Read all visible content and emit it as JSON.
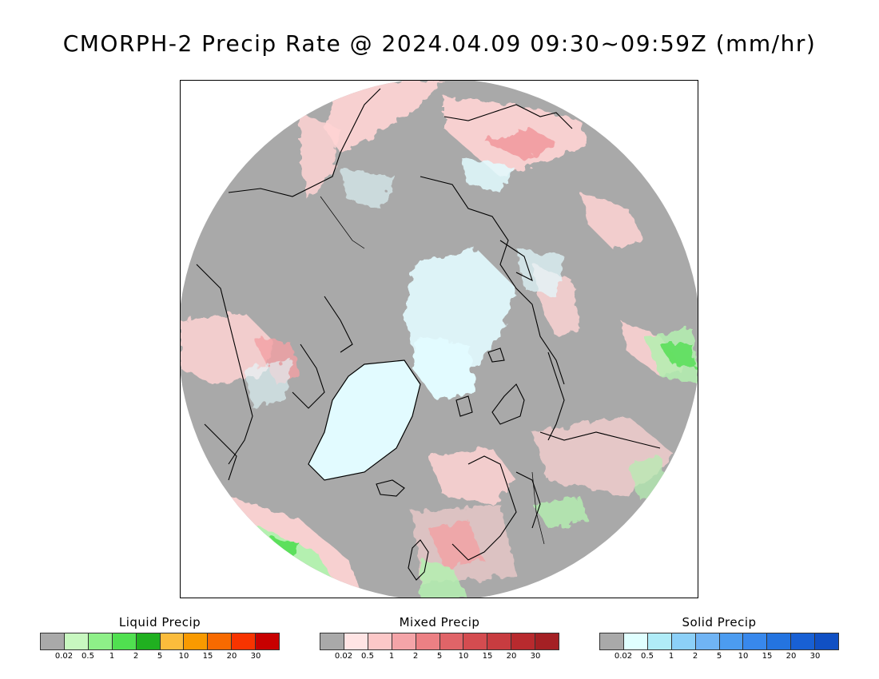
{
  "title": "CMORPH-2 Precip Rate @ 2024.04.09 09:30~09:59Z (mm/hr)",
  "map": {
    "projection_icon": "polar-stereographic-arctic-map",
    "colors": {
      "no_precip": "#a9a9a9",
      "ice_snow": "#e2fbff",
      "light_mixed": "#ffd4d4",
      "medium_mixed": "#f2a0a4",
      "heavy_mixed": "#dc5a5e",
      "light_liquid": "#b4f0b0",
      "medium_liquid": "#5ce05c",
      "outline": "#000000"
    }
  },
  "legends": [
    {
      "title": "Liquid Precip",
      "colors": [
        "#a9a9a9",
        "#c8f8c0",
        "#8ef088",
        "#50e050",
        "#20b020",
        "#fbbc3c",
        "#f99a00",
        "#f86a00",
        "#f83400",
        "#c80000"
      ],
      "ticks": [
        "0.02",
        "0.5",
        "1",
        "2",
        "5",
        "10",
        "15",
        "20",
        "30"
      ]
    },
    {
      "title": "Mixed Precip",
      "colors": [
        "#a9a9a9",
        "#ffe4e4",
        "#fcc8c8",
        "#f4a4a8",
        "#ec8084",
        "#e06468",
        "#d44c50",
        "#c83c40",
        "#b82a2e",
        "#a42024"
      ],
      "ticks": [
        "0.02",
        "0.5",
        "1",
        "2",
        "5",
        "10",
        "15",
        "20",
        "30"
      ]
    },
    {
      "title": "Solid Precip",
      "colors": [
        "#a9a9a9",
        "#e0ffff",
        "#b0ecf8",
        "#8cd0f8",
        "#70b4f4",
        "#4c9cf0",
        "#3888ec",
        "#2474e0",
        "#1860d4",
        "#1050c4"
      ],
      "ticks": [
        "0.02",
        "0.5",
        "1",
        "2",
        "5",
        "10",
        "15",
        "20",
        "30"
      ]
    }
  ]
}
